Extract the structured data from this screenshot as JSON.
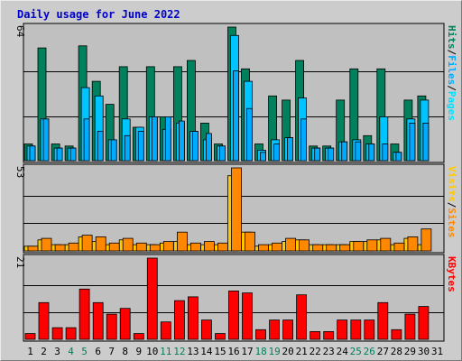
{
  "colors": {
    "hits": "#00805c",
    "files": "#00c4ff",
    "pages": "#00aaff",
    "visits": "#ffc800",
    "sites": "#ff8800",
    "kbytes": "#ff0000",
    "weekend_label": "#00805c",
    "weekday_label": "#000000",
    "plot_bg": "#c0c0c0",
    "title": "#0000cc"
  },
  "chart_data": {
    "type": "bar",
    "title": "Daily usage for June 2022",
    "categories": [
      "1",
      "2",
      "3",
      "4",
      "5",
      "6",
      "7",
      "8",
      "9",
      "10",
      "11",
      "12",
      "13",
      "14",
      "15",
      "16",
      "17",
      "18",
      "19",
      "20",
      "21",
      "22",
      "23",
      "24",
      "25",
      "26",
      "27",
      "28",
      "29",
      "30",
      "31"
    ],
    "weekend_days": [
      "4",
      "5",
      "11",
      "12",
      "18",
      "19",
      "25",
      "26"
    ],
    "panels": [
      {
        "name": "hits-files-pages",
        "ymax_label": "64",
        "ylim": [
          0,
          64
        ],
        "legend": [
          {
            "text": "Hits",
            "color": "#00805c"
          },
          {
            "text": "/",
            "color": "#000000"
          },
          {
            "text": "Files",
            "color": "#00aaff"
          },
          {
            "text": "/",
            "color": "#000000"
          },
          {
            "text": "Pages",
            "color": "#00e0ff"
          }
        ],
        "series": [
          {
            "name": "Hits",
            "values": [
              8,
              54,
              8,
              7,
              55,
              38,
              27,
              45,
              16,
              45,
              21,
              45,
              48,
              18,
              8,
              64,
              44,
              8,
              31,
              29,
              48,
              7,
              7,
              29,
              44,
              12,
              44,
              8,
              29,
              31,
              0
            ]
          },
          {
            "name": "Files",
            "values": [
              7,
              20,
              6,
              6,
              35,
              31,
              10,
              20,
              16,
              21,
              15,
              18,
              14,
              10,
              7,
              60,
              38,
              5,
              10,
              11,
              30,
              6,
              6,
              9,
              10,
              8,
              21,
              4,
              20,
              29,
              0
            ]
          },
          {
            "name": "Pages",
            "values": [
              7,
              20,
              6,
              6,
              20,
              14,
              10,
              12,
              14,
              21,
              21,
              19,
              14,
              13,
              7,
              43,
              25,
              4,
              8,
              11,
              20,
              6,
              6,
              9,
              9,
              8,
              8,
              4,
              18,
              18,
              0
            ]
          }
        ]
      },
      {
        "name": "visits-sites",
        "ymax_label": "53",
        "ylim": [
          0,
          53
        ],
        "legend": [
          {
            "text": "Visits",
            "color": "#ffc800"
          },
          {
            "text": "/",
            "color": "#000000"
          },
          {
            "text": "Sites",
            "color": "#ff8800"
          }
        ],
        "series": [
          {
            "name": "Visits",
            "values": [
              3,
              7,
              4,
              4,
              9,
              6,
              4,
              7,
              4,
              4,
              5,
              6,
              4,
              4,
              4,
              48,
              12,
              3,
              4,
              6,
              7,
              4,
              4,
              4,
              6,
              6,
              7,
              4,
              8,
              4,
              0
            ]
          },
          {
            "name": "Sites",
            "values": [
              3,
              8,
              4,
              5,
              10,
              9,
              5,
              8,
              5,
              4,
              6,
              12,
              5,
              6,
              5,
              53,
              12,
              4,
              5,
              8,
              7,
              4,
              4,
              4,
              6,
              7,
              8,
              5,
              9,
              14,
              0
            ]
          }
        ]
      },
      {
        "name": "kbytes",
        "ymax_label": "21",
        "ylim": [
          0,
          21
        ],
        "legend": [
          {
            "text": "KBytes",
            "color": "#ff0000"
          }
        ],
        "series": [
          {
            "name": "KBytes",
            "values": [
              1.5,
              9.5,
              3,
              3,
              13,
              9.5,
              6.5,
              8,
              1.5,
              21,
              4.5,
              10,
              11,
              5,
              1.5,
              12.5,
              12,
              2.5,
              5,
              5,
              11.5,
              2,
              2,
              5,
              5,
              5,
              9.5,
              2.5,
              6.5,
              8.5,
              0
            ]
          }
        ]
      }
    ]
  }
}
